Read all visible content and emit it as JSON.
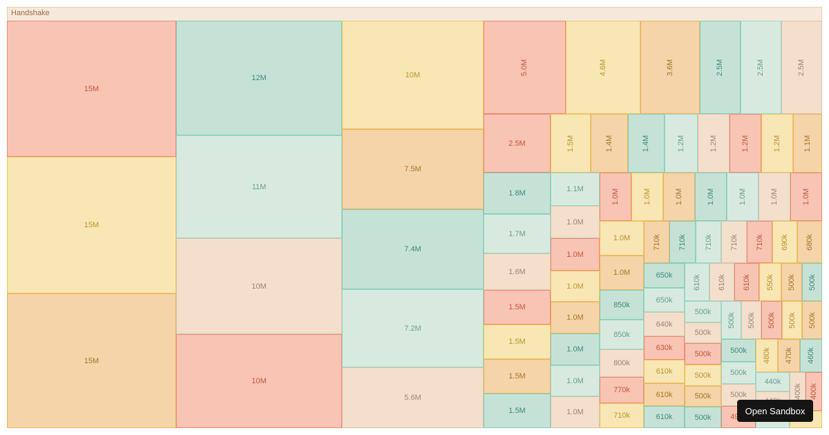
{
  "chart_data": {
    "type": "treemap",
    "root": "Handshake",
    "palette": [
      {
        "fill": "#f8c4b4",
        "border": "#ee8a74",
        "text": "#c0583c"
      },
      {
        "fill": "#f8e6b4",
        "border": "#eec460",
        "text": "#b89430"
      },
      {
        "fill": "#f4d4a8",
        "border": "#e8b462",
        "text": "#a8742c"
      },
      {
        "fill": "#c6e2d6",
        "border": "#84ccb8",
        "text": "#3f8880"
      },
      {
        "fill": "#d8eadf",
        "border": "#98d8c8",
        "text": "#6a9c94"
      },
      {
        "fill": "#f4dfcc",
        "border": "#d8c4aa",
        "text": "#9c8670"
      }
    ],
    "nodes": [
      "15M",
      "15M",
      "15M",
      "12M",
      "11M",
      "10M",
      "10M",
      "10M",
      "7.5M",
      "7.4M",
      "7.2M",
      "5.6M",
      "5.0M",
      "4.6M",
      "3.6M",
      "2.5M",
      "2.5M",
      "2.5M",
      "2.5M",
      "1.5M",
      "1.4M",
      "1.4M",
      "1.2M",
      "1.2M",
      "1.2M",
      "1.2M",
      "1.1M",
      "1.8M",
      "1.7M",
      "1.6M",
      "1.5M",
      "1.5M",
      "1.5M",
      "1.5M",
      "1.1M",
      "1.0M",
      "1.0M",
      "1.0M",
      "1.0M",
      "1.0M",
      "1.0M",
      "1.0M",
      "1.0M",
      "1.0M",
      "1.0M",
      "1.0M",
      "1.0M",
      "1.0M",
      "1.0M",
      "1.0M",
      "1.0M",
      "850k",
      "850k",
      "800k",
      "770k",
      "710k",
      "710k",
      "710k",
      "710k",
      "710k",
      "710k",
      "690k",
      "680k",
      "650k",
      "650k",
      "640k",
      "630k",
      "610k",
      "610k",
      "610k",
      "610k",
      "610k",
      "610k",
      "550k",
      "500k",
      "500k",
      "500k",
      "500k",
      "500k",
      "500k",
      "500k",
      "500k",
      "500k",
      "500k",
      "500k",
      "500k",
      "500k",
      "500k",
      "500k",
      "500k",
      "490k",
      "480k",
      "470k",
      "460k",
      "440k",
      "440k",
      "",
      "400k",
      "400k",
      ""
    ]
  },
  "tooltip": {
    "label": "Open Sandbox"
  }
}
